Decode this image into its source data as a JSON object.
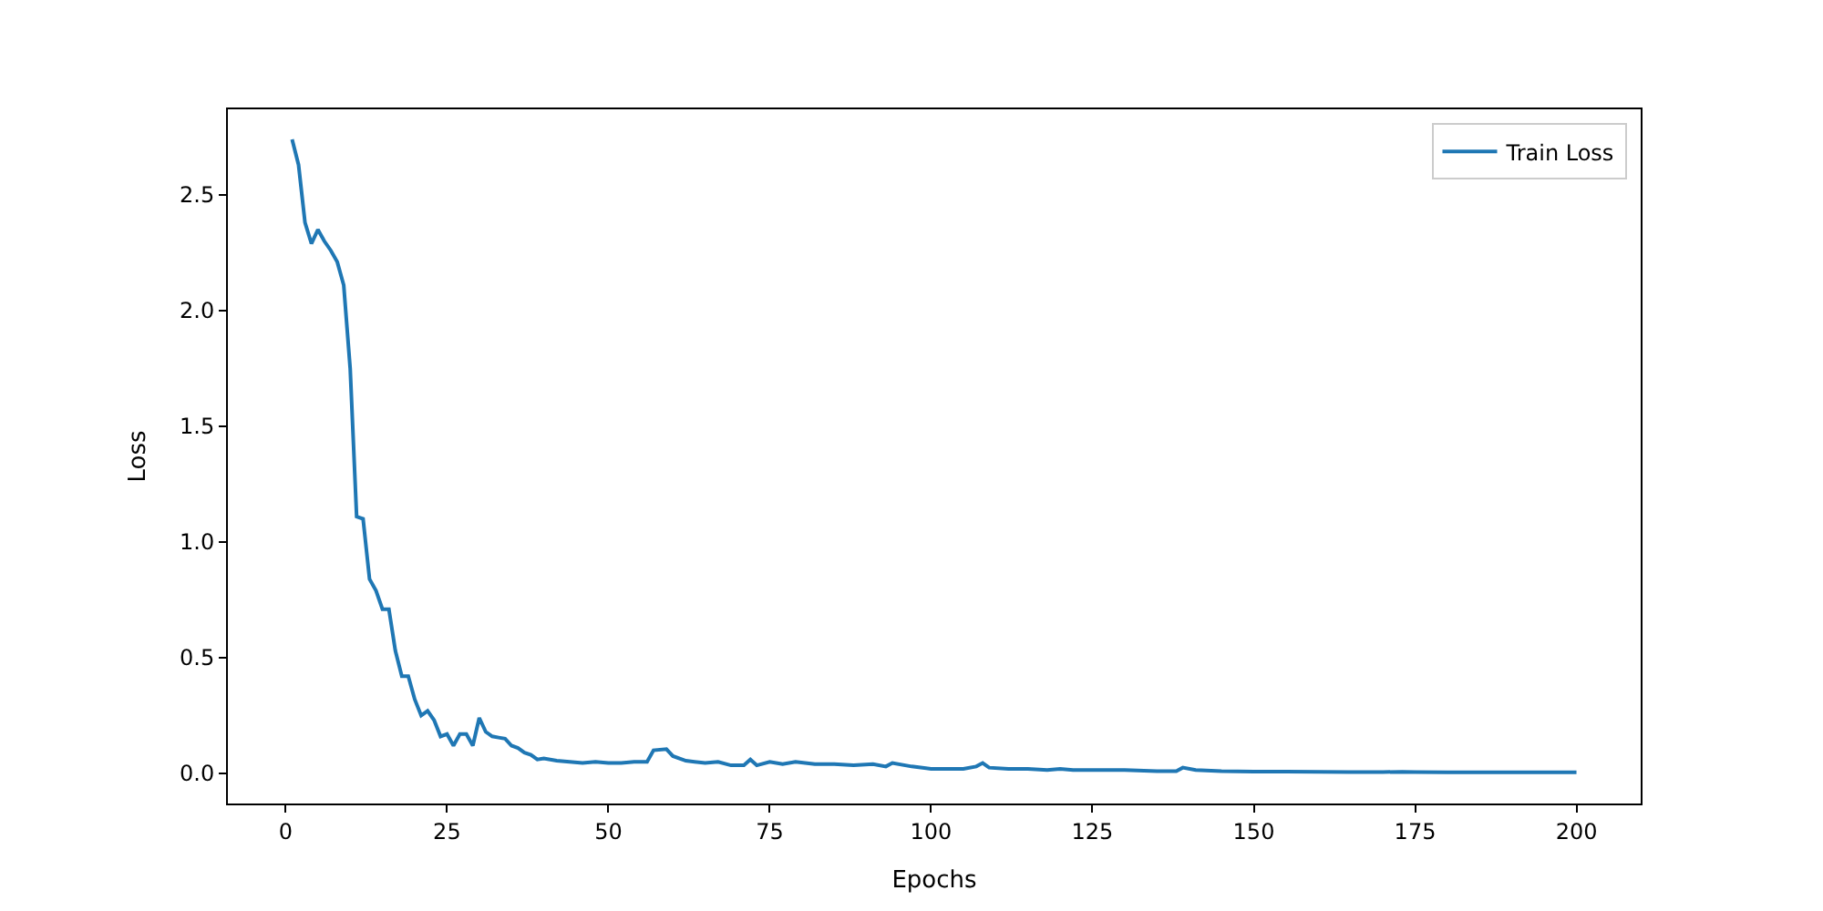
{
  "chart_data": {
    "type": "line",
    "xlabel": "Epochs",
    "ylabel": "Loss",
    "x": [
      1,
      2,
      3,
      4,
      5,
      6,
      7,
      8,
      9,
      10,
      11,
      12,
      13,
      14,
      15,
      16,
      17,
      18,
      19,
      20,
      21,
      22,
      23,
      24,
      25,
      26,
      27,
      28,
      29,
      30,
      31,
      32,
      33,
      34,
      35,
      36,
      37,
      38,
      39,
      40,
      42,
      44,
      46,
      48,
      50,
      52,
      54,
      56,
      57,
      59,
      60,
      62,
      65,
      67,
      69,
      71,
      72,
      73,
      75,
      77,
      79,
      82,
      85,
      88,
      91,
      93,
      94,
      97,
      100,
      103,
      105,
      107,
      108,
      109,
      112,
      115,
      118,
      120,
      122,
      125,
      130,
      135,
      138,
      139,
      141,
      145,
      150,
      155,
      160,
      165,
      170,
      173,
      175,
      180,
      185,
      190,
      195,
      200
    ],
    "series": [
      {
        "name": "Train Loss",
        "color": "#1f77b4",
        "values": [
          2.74,
          2.63,
          2.38,
          2.29,
          2.35,
          2.3,
          2.26,
          2.21,
          2.11,
          1.75,
          1.11,
          1.1,
          0.84,
          0.79,
          0.71,
          0.71,
          0.53,
          0.42,
          0.42,
          0.32,
          0.25,
          0.27,
          0.23,
          0.16,
          0.17,
          0.12,
          0.17,
          0.17,
          0.12,
          0.24,
          0.18,
          0.16,
          0.155,
          0.15,
          0.12,
          0.11,
          0.09,
          0.08,
          0.06,
          0.065,
          0.055,
          0.05,
          0.045,
          0.05,
          0.045,
          0.045,
          0.05,
          0.05,
          0.1,
          0.105,
          0.075,
          0.055,
          0.045,
          0.05,
          0.035,
          0.035,
          0.06,
          0.035,
          0.05,
          0.04,
          0.05,
          0.04,
          0.04,
          0.035,
          0.04,
          0.03,
          0.045,
          0.03,
          0.02,
          0.02,
          0.02,
          0.03,
          0.045,
          0.025,
          0.02,
          0.02,
          0.015,
          0.02,
          0.015,
          0.015,
          0.015,
          0.01,
          0.01,
          0.025,
          0.015,
          0.01,
          0.008,
          0.008,
          0.007,
          0.006,
          0.006,
          0.007,
          0.006,
          0.005,
          0.005,
          0.005,
          0.005,
          0.005
        ]
      }
    ],
    "xlim": [
      -8.95,
      209.95
    ],
    "xticks": [
      0,
      25,
      50,
      75,
      100,
      125,
      150,
      175,
      200
    ],
    "ylim": [
      -0.13,
      2.87
    ],
    "yticks": [
      {
        "value": 0,
        "label": "0.0"
      },
      {
        "value": 0.5,
        "label": "0.5"
      },
      {
        "value": 1,
        "label": "1.0"
      },
      {
        "value": 1.5,
        "label": "1.5"
      },
      {
        "value": 2,
        "label": "2.0"
      },
      {
        "value": 2.5,
        "label": "2.5"
      }
    ],
    "legend": "top right",
    "marker": "none",
    "line_style": "solid"
  }
}
